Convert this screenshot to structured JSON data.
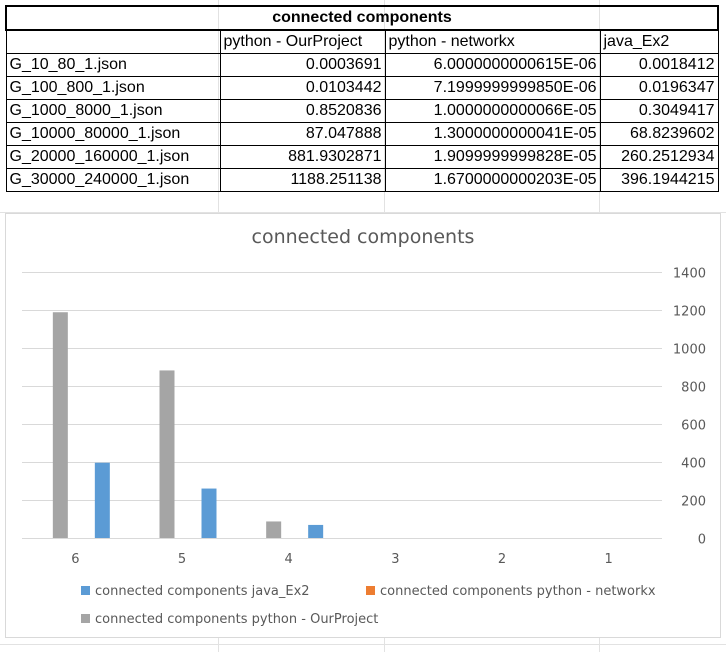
{
  "table": {
    "title": "connected components",
    "headers": [
      "",
      "python - OurProject",
      "python - networkx",
      "java_Ex2"
    ],
    "rows": [
      [
        "G_10_80_1.json",
        "0.0003691",
        "6.0000000000615E-06",
        "0.0018412"
      ],
      [
        "G_100_800_1.json",
        "0.0103442",
        "7.1999999999850E-06",
        "0.0196347"
      ],
      [
        "G_1000_8000_1.json",
        "0.8520836",
        "1.0000000000066E-05",
        "0.3049417"
      ],
      [
        "G_10000_80000_1.json",
        "87.047888",
        "1.3000000000041E-05",
        "68.8239602"
      ],
      [
        "G_20000_160000_1.json",
        "881.9302871",
        "1.9099999999828E-05",
        "260.2512934"
      ],
      [
        "G_30000_240000_1.json",
        "1188.251138",
        "1.6700000000203E-05",
        "396.1944215"
      ]
    ]
  },
  "colors": {
    "java": "#5b9bd5",
    "networkx": "#ed7d31",
    "ourproject": "#a5a5a5",
    "grid": "#d9d9d9",
    "text": "#595959"
  },
  "chart_data": {
    "type": "bar",
    "title": "connected components",
    "categories": [
      "6",
      "5",
      "4",
      "3",
      "2",
      "1"
    ],
    "series": [
      {
        "name": "connected components python - OurProject",
        "color": "#a5a5a5",
        "values": [
          1188.251138,
          881.9302871,
          87.047888,
          0.8520836,
          0.0103442,
          0.0003691
        ]
      },
      {
        "name": "connected components python - networkx",
        "color": "#ed7d31",
        "values": [
          1.67e-05,
          1.91e-05,
          1.3e-05,
          1e-05,
          7.2e-06,
          6e-06
        ]
      },
      {
        "name": "connected components java_Ex2",
        "color": "#5b9bd5",
        "values": [
          396.1944215,
          260.2512934,
          68.8239602,
          0.3049417,
          0.0196347,
          0.0018412
        ]
      }
    ],
    "ylim": [
      0,
      1400
    ],
    "yticks": [
      "0",
      "200",
      "400",
      "600",
      "800",
      "1000",
      "1200",
      "1400"
    ],
    "y_axis_side": "right",
    "grid": true,
    "legend_position": "bottom",
    "legend": [
      "connected components java_Ex2",
      "connected components python - networkx",
      "connected components python - OurProject"
    ]
  }
}
